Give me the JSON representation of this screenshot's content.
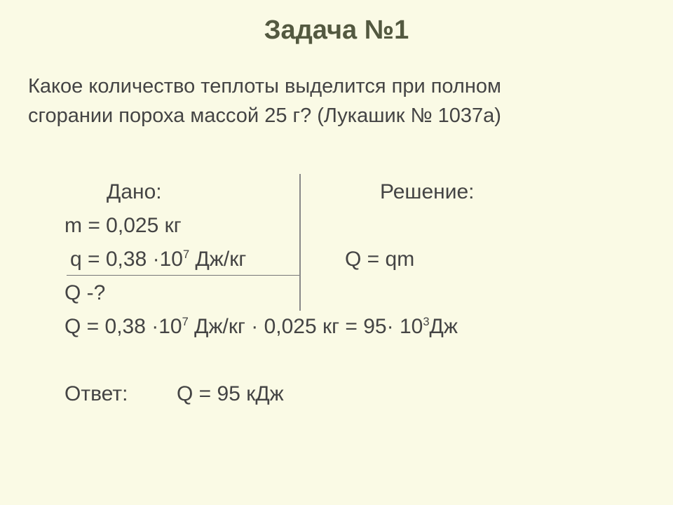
{
  "title": "Задача №1",
  "problem_line1": "Какое количество теплоты выделится при полном",
  "problem_line2": "сгорании пороха массой 25 г? (Лукашик № 1037а)",
  "dano_label": "Дано:",
  "reshenie_label": "Решение:",
  "given_m": "m = 0,025 кг",
  "given_q_pre": " q = 0,38 ·10",
  "given_q_exp": "7",
  "given_q_post": " Дж/кг",
  "formula": "Q = qm",
  "find": "Q -?",
  "calc_pre": "Q = 0,38 ·10",
  "calc_exp1": "7",
  "calc_mid": " Дж/кг · 0,025 кг = 95· 10",
  "calc_exp2": "3",
  "calc_post": "Дж",
  "answer_label": "Ответ:",
  "answer_value": "Q = 95 кДж",
  "colors": {
    "background": "#fafae5",
    "title": "#535940",
    "text": "#444444"
  },
  "fontsize": {
    "title": 38,
    "body": 30,
    "problem": 29
  }
}
